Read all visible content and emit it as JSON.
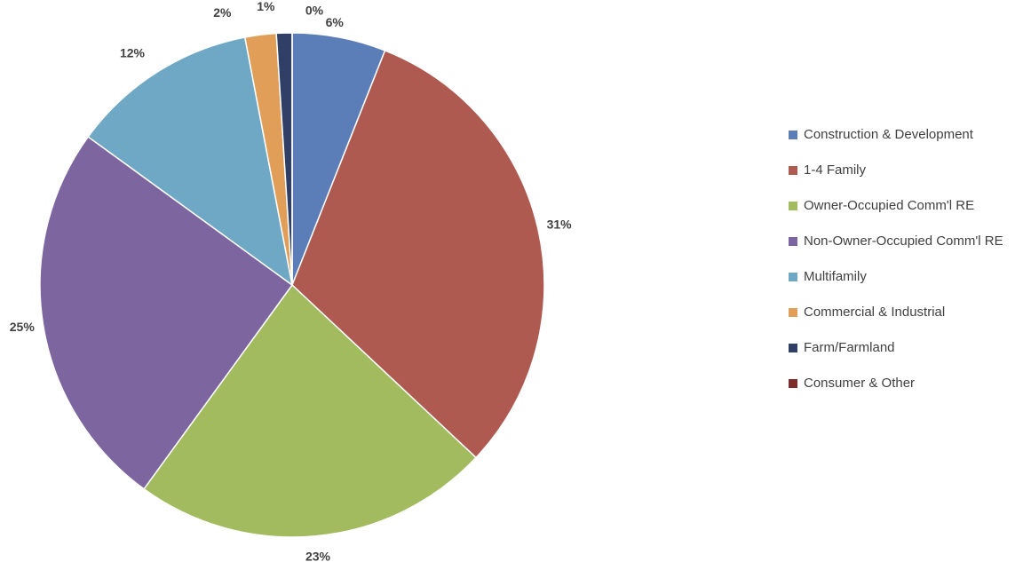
{
  "chart_data": {
    "type": "pie",
    "categories": [
      "Construction & Development",
      "1-4 Family",
      "Owner-Occupied Comm'l RE",
      "Non-Owner-Occupied Comm'l RE",
      "Multifamily",
      "Commercial & Industrial",
      "Farm/Farmland",
      "Consumer & Other"
    ],
    "values": [
      6,
      31,
      23,
      25,
      12,
      2,
      1,
      0
    ],
    "value_labels": [
      "6%",
      "31%",
      "23%",
      "25%",
      "12%",
      "2%",
      "1%",
      "0%"
    ],
    "colors": [
      "#5b7db8",
      "#ae5a50",
      "#a2bb5e",
      "#7d66a0",
      "#6ea8c4",
      "#e09e58",
      "#2f3f66",
      "#7b2e2b"
    ],
    "legend": "right"
  }
}
